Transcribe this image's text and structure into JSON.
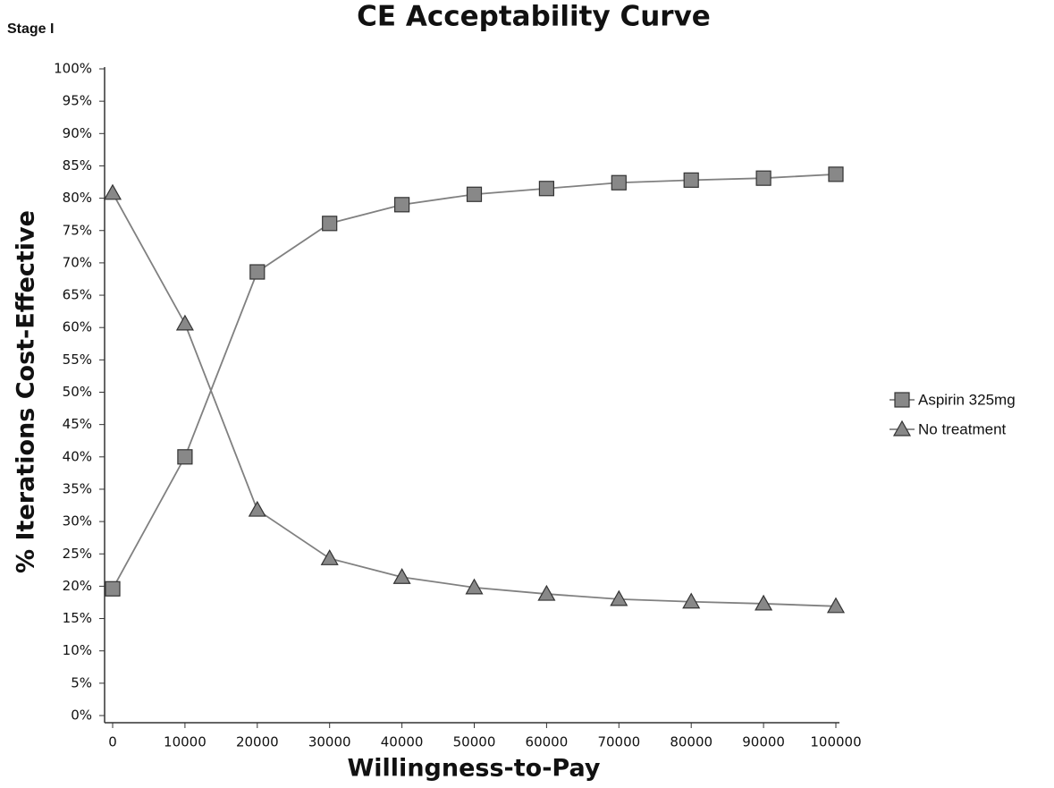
{
  "chart_data": {
    "type": "line",
    "title": "CE Acceptability Curve",
    "panel_label": "Stage I",
    "x_label": "Willingness-to-Pay",
    "y_label": "% Iterations Cost-Effective",
    "x": [
      0,
      10000,
      20000,
      30000,
      40000,
      50000,
      60000,
      70000,
      80000,
      90000,
      100000
    ],
    "series": [
      {
        "name": "Aspirin 325mg",
        "color": "#808080",
        "marker": "square",
        "values": [
          19.6,
          40,
          68.6,
          76.1,
          79,
          80.6,
          81.5,
          82.4,
          82.8,
          83.1,
          83.7
        ]
      },
      {
        "name": "No treatment",
        "color": "#808080",
        "marker": "triangle",
        "values": [
          80.8,
          60.6,
          31.8,
          24.3,
          21.4,
          19.8,
          18.8,
          18,
          17.6,
          17.3,
          16.9
        ]
      }
    ],
    "xlim": [
      0,
      100000
    ],
    "xticks": [
      0,
      10000,
      20000,
      30000,
      40000,
      50000,
      60000,
      70000,
      80000,
      90000,
      100000
    ],
    "ylim": [
      0,
      100
    ],
    "yticks": [
      {
        "value": 0,
        "label": "0%"
      },
      {
        "value": 5,
        "label": "5%"
      },
      {
        "value": 10,
        "label": "10%"
      },
      {
        "value": 15,
        "label": "15%"
      },
      {
        "value": 20,
        "label": "20%"
      },
      {
        "value": 25,
        "label": "25%"
      },
      {
        "value": 30,
        "label": "30%"
      },
      {
        "value": 35,
        "label": "35%"
      },
      {
        "value": 40,
        "label": "40%"
      },
      {
        "value": 45,
        "label": "45%"
      },
      {
        "value": 50,
        "label": "50%"
      },
      {
        "value": 55,
        "label": "55%"
      },
      {
        "value": 60,
        "label": "60%"
      },
      {
        "value": 65,
        "label": "65%"
      },
      {
        "value": 70,
        "label": "70%"
      },
      {
        "value": 75,
        "label": "75%"
      },
      {
        "value": 80,
        "label": "80%"
      },
      {
        "value": 85,
        "label": "85%"
      },
      {
        "value": 90,
        "label": "90%"
      },
      {
        "value": 95,
        "label": "95%"
      },
      {
        "value": 100,
        "label": "100%"
      }
    ],
    "grid": false,
    "legend_position": "right"
  }
}
